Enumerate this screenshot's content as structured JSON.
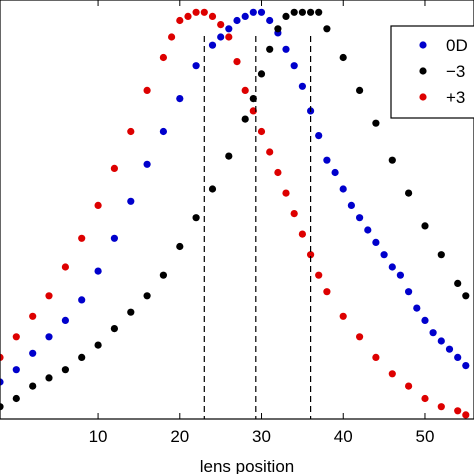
{
  "chart_data": {
    "type": "scatter",
    "xlabel": "lens position",
    "ylabel": "",
    "title": "",
    "xlim": [
      -2,
      56
    ],
    "ylim": [
      0,
      1.02
    ],
    "xticks": [
      10,
      20,
      30,
      40,
      50
    ],
    "grid": false,
    "legend_position": "top-right",
    "legend_entries_visible": [
      "0D",
      "−3",
      "+3"
    ],
    "vlines": [
      23,
      29.3,
      36
    ],
    "series": [
      {
        "name": "0D",
        "color": "#0000cc",
        "x": [
          -2,
          0,
          2,
          4,
          6,
          8,
          10,
          12,
          14,
          16,
          18,
          20,
          22,
          24,
          25,
          26,
          27,
          28,
          29,
          30,
          31,
          32,
          33,
          34,
          35,
          36,
          37,
          38,
          39,
          40,
          41,
          42,
          43,
          44,
          45,
          46,
          47,
          48,
          49,
          50,
          51,
          52,
          53,
          54,
          55
        ],
        "y": [
          0.09,
          0.12,
          0.16,
          0.2,
          0.24,
          0.29,
          0.36,
          0.44,
          0.53,
          0.62,
          0.7,
          0.78,
          0.86,
          0.91,
          0.93,
          0.95,
          0.97,
          0.98,
          0.99,
          0.99,
          0.97,
          0.94,
          0.9,
          0.86,
          0.81,
          0.75,
          0.69,
          0.63,
          0.6,
          0.56,
          0.52,
          0.49,
          0.46,
          0.43,
          0.4,
          0.37,
          0.35,
          0.31,
          0.27,
          0.24,
          0.21,
          0.19,
          0.17,
          0.15,
          0.13
        ]
      },
      {
        "name": "−3",
        "color": "#000000",
        "x": [
          -2,
          0,
          2,
          4,
          6,
          8,
          10,
          12,
          14,
          16,
          18,
          20,
          22,
          24,
          26,
          28,
          29,
          30,
          31,
          32,
          33,
          34,
          35,
          36,
          37,
          38,
          40,
          42,
          44,
          46,
          48,
          50,
          52,
          54,
          55
        ],
        "y": [
          0.03,
          0.05,
          0.08,
          0.1,
          0.12,
          0.15,
          0.18,
          0.22,
          0.26,
          0.3,
          0.35,
          0.42,
          0.49,
          0.56,
          0.64,
          0.73,
          0.78,
          0.84,
          0.9,
          0.95,
          0.98,
          0.99,
          0.99,
          0.99,
          0.99,
          0.95,
          0.88,
          0.8,
          0.72,
          0.63,
          0.55,
          0.47,
          0.4,
          0.33,
          0.3
        ]
      },
      {
        "name": "+3",
        "color": "#dd0000",
        "x": [
          -2,
          0,
          2,
          4,
          6,
          8,
          10,
          12,
          14,
          16,
          18,
          19,
          20,
          21,
          22,
          23,
          24,
          25,
          26,
          27,
          28,
          29,
          30,
          31,
          32,
          33,
          34,
          35,
          36,
          37,
          38,
          40,
          42,
          44,
          46,
          48,
          50,
          52,
          54,
          55
        ],
        "y": [
          0.15,
          0.2,
          0.25,
          0.3,
          0.37,
          0.44,
          0.52,
          0.61,
          0.7,
          0.8,
          0.88,
          0.93,
          0.97,
          0.98,
          0.99,
          0.99,
          0.98,
          0.96,
          0.93,
          0.87,
          0.8,
          0.75,
          0.7,
          0.65,
          0.6,
          0.55,
          0.5,
          0.45,
          0.4,
          0.35,
          0.31,
          0.25,
          0.2,
          0.15,
          0.11,
          0.08,
          0.05,
          0.03,
          0.02,
          0.01
        ]
      }
    ]
  }
}
